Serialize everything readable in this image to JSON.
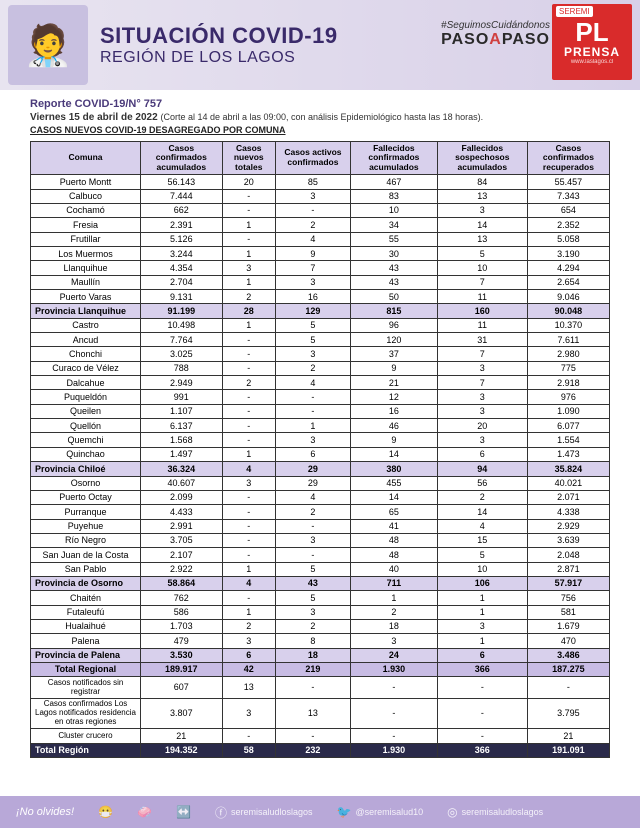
{
  "header": {
    "title1": "SITUACIÓN COVID-19",
    "title2": "REGIÓN DE LOS LAGOS",
    "hashtag": "#SeguimosCuidándonos",
    "paso_a": "PASO",
    "paso_b": "A",
    "paso_c": "PASO",
    "pl": "PL",
    "prensa": "PRENSA",
    "pl_url": "www.laslagos.cl",
    "seal": "SEREMI"
  },
  "meta": {
    "report": "Reporte COVID-19/N° 757",
    "date": "Viernes 15 de abril  de 2022",
    "note": "(Corte al 14 de abril a las 09:00, con análisis Epidemiológico hasta las 18 horas).",
    "subhead": "CASOS NUEVOS COVID-19 DESAGREGADO POR COMUNA"
  },
  "columns": [
    "Comuna",
    "Casos confirmados acumulados",
    "Casos nuevos totales",
    "Casos activos confirmados",
    "Fallecidos confirmados acumulados",
    "Fallecidos sospechosos acumulados",
    "Casos confirmados recuperados"
  ],
  "rows": [
    {
      "t": "d",
      "n": "Puerto Montt",
      "v": [
        "56.143",
        "20",
        "85",
        "467",
        "84",
        "55.457"
      ]
    },
    {
      "t": "d",
      "n": "Calbuco",
      "v": [
        "7.444",
        "-",
        "3",
        "83",
        "13",
        "7.343"
      ]
    },
    {
      "t": "d",
      "n": "Cochamó",
      "v": [
        "662",
        "-",
        "-",
        "10",
        "3",
        "654"
      ]
    },
    {
      "t": "d",
      "n": "Fresia",
      "v": [
        "2.391",
        "1",
        "2",
        "34",
        "14",
        "2.352"
      ]
    },
    {
      "t": "d",
      "n": "Frutillar",
      "v": [
        "5.126",
        "-",
        "4",
        "55",
        "13",
        "5.058"
      ]
    },
    {
      "t": "d",
      "n": "Los Muermos",
      "v": [
        "3.244",
        "1",
        "9",
        "30",
        "5",
        "3.190"
      ]
    },
    {
      "t": "d",
      "n": "Llanquihue",
      "v": [
        "4.354",
        "3",
        "7",
        "43",
        "10",
        "4.294"
      ]
    },
    {
      "t": "d",
      "n": "Maullín",
      "v": [
        "2.704",
        "1",
        "3",
        "43",
        "7",
        "2.654"
      ]
    },
    {
      "t": "d",
      "n": "Puerto Varas",
      "v": [
        "9.131",
        "2",
        "16",
        "50",
        "11",
        "9.046"
      ]
    },
    {
      "t": "p",
      "n": "Provincia Llanquihue",
      "v": [
        "91.199",
        "28",
        "129",
        "815",
        "160",
        "90.048"
      ]
    },
    {
      "t": "d",
      "n": "Castro",
      "v": [
        "10.498",
        "1",
        "5",
        "96",
        "11",
        "10.370"
      ]
    },
    {
      "t": "d",
      "n": "Ancud",
      "v": [
        "7.764",
        "-",
        "5",
        "120",
        "31",
        "7.611"
      ]
    },
    {
      "t": "d",
      "n": "Chonchi",
      "v": [
        "3.025",
        "-",
        "3",
        "37",
        "7",
        "2.980"
      ]
    },
    {
      "t": "d",
      "n": "Curaco de Vélez",
      "v": [
        "788",
        "-",
        "2",
        "9",
        "3",
        "775"
      ]
    },
    {
      "t": "d",
      "n": "Dalcahue",
      "v": [
        "2.949",
        "2",
        "4",
        "21",
        "7",
        "2.918"
      ]
    },
    {
      "t": "d",
      "n": "Puqueldón",
      "v": [
        "991",
        "-",
        "-",
        "12",
        "3",
        "976"
      ]
    },
    {
      "t": "d",
      "n": "Queilen",
      "v": [
        "1.107",
        "-",
        "-",
        "16",
        "3",
        "1.090"
      ]
    },
    {
      "t": "d",
      "n": "Quellón",
      "v": [
        "6.137",
        "-",
        "1",
        "46",
        "20",
        "6.077"
      ]
    },
    {
      "t": "d",
      "n": "Quemchi",
      "v": [
        "1.568",
        "-",
        "3",
        "9",
        "3",
        "1.554"
      ]
    },
    {
      "t": "d",
      "n": "Quinchao",
      "v": [
        "1.497",
        "1",
        "6",
        "14",
        "6",
        "1.473"
      ]
    },
    {
      "t": "p",
      "n": "Provincia  Chiloé",
      "v": [
        "36.324",
        "4",
        "29",
        "380",
        "94",
        "35.824"
      ]
    },
    {
      "t": "d",
      "n": "Osorno",
      "v": [
        "40.607",
        "3",
        "29",
        "455",
        "56",
        "40.021"
      ]
    },
    {
      "t": "d",
      "n": "Puerto Octay",
      "v": [
        "2.099",
        "-",
        "4",
        "14",
        "2",
        "2.071"
      ]
    },
    {
      "t": "d",
      "n": "Purranque",
      "v": [
        "4.433",
        "-",
        "2",
        "65",
        "14",
        "4.338"
      ]
    },
    {
      "t": "d",
      "n": "Puyehue",
      "v": [
        "2.991",
        "-",
        "-",
        "41",
        "4",
        "2.929"
      ]
    },
    {
      "t": "d",
      "n": "Río Negro",
      "v": [
        "3.705",
        "-",
        "3",
        "48",
        "15",
        "3.639"
      ]
    },
    {
      "t": "d",
      "n": "San Juan de la Costa",
      "v": [
        "2.107",
        "-",
        "-",
        "48",
        "5",
        "2.048"
      ]
    },
    {
      "t": "d",
      "n": "San Pablo",
      "v": [
        "2.922",
        "1",
        "5",
        "40",
        "10",
        "2.871"
      ]
    },
    {
      "t": "p",
      "n": "Provincia de Osorno",
      "v": [
        "58.864",
        "4",
        "43",
        "711",
        "106",
        "57.917"
      ]
    },
    {
      "t": "d",
      "n": "Chaitén",
      "v": [
        "762",
        "-",
        "5",
        "1",
        "1",
        "756"
      ]
    },
    {
      "t": "d",
      "n": "Futaleufú",
      "v": [
        "586",
        "1",
        "3",
        "2",
        "1",
        "581"
      ]
    },
    {
      "t": "d",
      "n": "Hualaihué",
      "v": [
        "1.703",
        "2",
        "2",
        "18",
        "3",
        "1.679"
      ]
    },
    {
      "t": "d",
      "n": "Palena",
      "v": [
        "479",
        "3",
        "8",
        "3",
        "1",
        "470"
      ]
    },
    {
      "t": "p",
      "n": "Provincia de Palena",
      "v": [
        "3.530",
        "6",
        "18",
        "24",
        "6",
        "3.486"
      ]
    },
    {
      "t": "tr",
      "n": "Total Regional",
      "v": [
        "189.917",
        "42",
        "219",
        "1.930",
        "366",
        "187.275"
      ]
    },
    {
      "t": "x",
      "n": "Casos notificados sin registrar",
      "v": [
        "607",
        "13",
        "-",
        "-",
        "-",
        "-"
      ]
    },
    {
      "t": "x",
      "n": "Casos confirmados Los  Lagos notificados  residencia en otras  regiones",
      "v": [
        "3.807",
        "3",
        "13",
        "-",
        "-",
        "3.795"
      ]
    },
    {
      "t": "x",
      "n": "Cluster crucero",
      "v": [
        "21",
        "-",
        "-",
        "-",
        "-",
        "21"
      ]
    },
    {
      "t": "tR",
      "n": "Total Región",
      "v": [
        "194.352",
        "58",
        "232",
        "1.930",
        "366",
        "191.091"
      ]
    }
  ],
  "footer": {
    "no_olvides": "¡No olvides!",
    "s1": "seremisaludloslagos",
    "s2": "@seremisalud10",
    "s3": "seremisaludloslagos"
  },
  "colors": {
    "header_bg": "#d8d0e8",
    "province_bg": "#d8d0ec",
    "total_regional_bg": "#c8bce4",
    "total_region_bg": "#2a2a4a",
    "pl_red": "#d92b2b",
    "footer_bg": "#b8a8d8",
    "title_color": "#3a2a6a"
  }
}
